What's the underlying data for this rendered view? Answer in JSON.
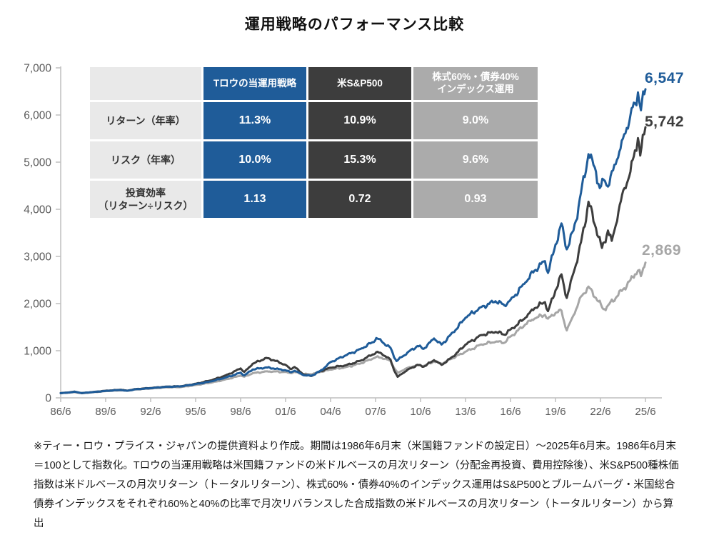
{
  "title": "運用戦略のパフォーマンス比較",
  "colors": {
    "strategy_blue": "#1F5C99",
    "sp500_dark": "#3D3D3D",
    "blend_gray": "#A6A6A6",
    "table_header_gray": "#ABABAB",
    "table_label_bg": "#E9E9E9",
    "axis_line": "#BFBFBF",
    "tick_text": "#595959"
  },
  "table": {
    "col_headers": [
      "",
      "Tロウの当運用戦略",
      "米S&P500",
      "株式60%・債券40%\nインデックス運用"
    ],
    "rows": [
      {
        "label": "リターン（年率）",
        "values": [
          "11.3%",
          "10.9%",
          "9.0%"
        ]
      },
      {
        "label": "リスク（年率）",
        "values": [
          "10.0%",
          "15.3%",
          "9.6%"
        ]
      },
      {
        "label": "投資効率\n（リターン÷リスク）",
        "values": [
          "1.13",
          "0.72",
          "0.93"
        ]
      }
    ]
  },
  "chart_data": {
    "type": "line",
    "title": "運用戦略のパフォーマンス比較",
    "xlabel": "",
    "ylabel": "",
    "xlim": [
      1986.5,
      2025.5
    ],
    "ylim": [
      0,
      7000
    ],
    "grid": false,
    "legend_position": "table-overlay",
    "x_ticks": [
      "86/6",
      "89/6",
      "92/6",
      "95/6",
      "98/6",
      "01/6",
      "04/6",
      "07/6",
      "10/6",
      "13/6",
      "16/6",
      "19/6",
      "22/6",
      "25/6"
    ],
    "y_ticks": [
      0,
      1000,
      2000,
      3000,
      4000,
      5000,
      6000,
      7000
    ],
    "index_base": 100,
    "series": [
      {
        "id": "strategy",
        "name": "Tロウの当運用戦略",
        "color": "#1F5C99",
        "end_value": 6547,
        "end_label": "6,547",
        "points": [
          [
            1986.5,
            100
          ],
          [
            1987.0,
            112
          ],
          [
            1987.42,
            130
          ],
          [
            1987.92,
            102
          ],
          [
            1988.5,
            118
          ],
          [
            1989.5,
            148
          ],
          [
            1990.5,
            167
          ],
          [
            1990.92,
            150
          ],
          [
            1991.5,
            183
          ],
          [
            1992.5,
            205
          ],
          [
            1993.5,
            235
          ],
          [
            1994.5,
            242
          ],
          [
            1995.5,
            292
          ],
          [
            1996.5,
            348
          ],
          [
            1997.5,
            432
          ],
          [
            1998.5,
            535
          ],
          [
            1998.75,
            478
          ],
          [
            1999.3,
            600
          ],
          [
            2000.2,
            645
          ],
          [
            2000.7,
            622
          ],
          [
            2001.5,
            585
          ],
          [
            2001.8,
            545
          ],
          [
            2002.1,
            575
          ],
          [
            2002.75,
            478
          ],
          [
            2003.2,
            468
          ],
          [
            2003.8,
            570
          ],
          [
            2004.5,
            760
          ],
          [
            2005.5,
            900
          ],
          [
            2006.5,
            1040
          ],
          [
            2007.3,
            1180
          ],
          [
            2007.55,
            1270
          ],
          [
            2007.9,
            1200
          ],
          [
            2008.5,
            1060
          ],
          [
            2008.9,
            780
          ],
          [
            2009.2,
            860
          ],
          [
            2009.7,
            980
          ],
          [
            2010.3,
            1100
          ],
          [
            2010.7,
            1040
          ],
          [
            2011.4,
            1260
          ],
          [
            2011.9,
            1130
          ],
          [
            2012.5,
            1340
          ],
          [
            2013.5,
            1700
          ],
          [
            2014.5,
            1920
          ],
          [
            2015.5,
            2050
          ],
          [
            2016.1,
            1960
          ],
          [
            2016.5,
            2080
          ],
          [
            2017.5,
            2450
          ],
          [
            2018.1,
            2700
          ],
          [
            2018.8,
            2900
          ],
          [
            2019.0,
            2650
          ],
          [
            2019.5,
            3250
          ],
          [
            2019.9,
            3700
          ],
          [
            2020.25,
            3150
          ],
          [
            2020.7,
            3550
          ],
          [
            2021.2,
            4350
          ],
          [
            2021.7,
            5170
          ],
          [
            2022.2,
            4800
          ],
          [
            2022.45,
            4450
          ],
          [
            2022.8,
            4600
          ],
          [
            2023.0,
            4480
          ],
          [
            2023.6,
            5050
          ],
          [
            2024.0,
            5500
          ],
          [
            2024.5,
            6000
          ],
          [
            2024.8,
            6250
          ],
          [
            2025.0,
            6480
          ],
          [
            2025.2,
            6100
          ],
          [
            2025.5,
            6547
          ]
        ]
      },
      {
        "id": "sp500",
        "name": "米S&P500",
        "color": "#3D3D3D",
        "end_value": 5742,
        "end_label": "5,742",
        "points": [
          [
            1986.5,
            100
          ],
          [
            1987.0,
            113
          ],
          [
            1987.42,
            133
          ],
          [
            1987.92,
            99
          ],
          [
            1988.5,
            119
          ],
          [
            1989.5,
            152
          ],
          [
            1990.5,
            172
          ],
          [
            1990.92,
            153
          ],
          [
            1991.5,
            187
          ],
          [
            1992.5,
            209
          ],
          [
            1993.5,
            238
          ],
          [
            1994.5,
            245
          ],
          [
            1995.5,
            300
          ],
          [
            1996.5,
            370
          ],
          [
            1997.5,
            478
          ],
          [
            1998.5,
            625
          ],
          [
            1998.75,
            550
          ],
          [
            1999.3,
            722
          ],
          [
            2000.2,
            848
          ],
          [
            2000.7,
            800
          ],
          [
            2001.5,
            700
          ],
          [
            2001.8,
            615
          ],
          [
            2002.1,
            655
          ],
          [
            2002.75,
            490
          ],
          [
            2003.2,
            462
          ],
          [
            2003.8,
            565
          ],
          [
            2004.5,
            640
          ],
          [
            2005.5,
            690
          ],
          [
            2006.5,
            790
          ],
          [
            2007.3,
            920
          ],
          [
            2007.55,
            970
          ],
          [
            2007.9,
            940
          ],
          [
            2008.5,
            810
          ],
          [
            2008.97,
            445
          ],
          [
            2009.3,
            520
          ],
          [
            2009.7,
            610
          ],
          [
            2010.3,
            700
          ],
          [
            2010.7,
            660
          ],
          [
            2011.4,
            800
          ],
          [
            2011.9,
            700
          ],
          [
            2012.5,
            840
          ],
          [
            2013.5,
            1130
          ],
          [
            2014.5,
            1330
          ],
          [
            2015.5,
            1400
          ],
          [
            2016.1,
            1340
          ],
          [
            2016.5,
            1450
          ],
          [
            2017.5,
            1700
          ],
          [
            2018.1,
            1900
          ],
          [
            2018.8,
            2030
          ],
          [
            2019.0,
            1840
          ],
          [
            2019.5,
            2280
          ],
          [
            2019.9,
            2620
          ],
          [
            2020.25,
            2120
          ],
          [
            2020.7,
            2650
          ],
          [
            2021.2,
            3300
          ],
          [
            2021.7,
            4160
          ],
          [
            2022.2,
            3600
          ],
          [
            2022.6,
            3180
          ],
          [
            2023.0,
            3550
          ],
          [
            2023.25,
            3330
          ],
          [
            2023.7,
            3950
          ],
          [
            2024.1,
            4450
          ],
          [
            2024.5,
            4800
          ],
          [
            2024.8,
            5250
          ],
          [
            2025.0,
            5510
          ],
          [
            2025.15,
            5140
          ],
          [
            2025.5,
            5742
          ]
        ]
      },
      {
        "id": "blend",
        "name": "株式60%・債券40%インデックス運用",
        "color": "#A6A6A6",
        "end_value": 2869,
        "end_label": "2,869",
        "points": [
          [
            1986.5,
            100
          ],
          [
            1987.0,
            109
          ],
          [
            1987.42,
            121
          ],
          [
            1987.92,
            104
          ],
          [
            1988.5,
            115
          ],
          [
            1989.5,
            143
          ],
          [
            1990.5,
            159
          ],
          [
            1990.92,
            151
          ],
          [
            1991.5,
            177
          ],
          [
            1992.5,
            197
          ],
          [
            1993.5,
            223
          ],
          [
            1994.5,
            228
          ],
          [
            1995.5,
            273
          ],
          [
            1996.5,
            320
          ],
          [
            1997.5,
            392
          ],
          [
            1998.5,
            472
          ],
          [
            1998.75,
            448
          ],
          [
            1999.3,
            522
          ],
          [
            2000.2,
            562
          ],
          [
            2000.7,
            560
          ],
          [
            2001.5,
            548
          ],
          [
            2001.8,
            528
          ],
          [
            2002.1,
            548
          ],
          [
            2002.75,
            505
          ],
          [
            2003.2,
            500
          ],
          [
            2003.8,
            548
          ],
          [
            2004.5,
            600
          ],
          [
            2005.5,
            650
          ],
          [
            2006.5,
            730
          ],
          [
            2007.3,
            830
          ],
          [
            2007.55,
            870
          ],
          [
            2007.9,
            850
          ],
          [
            2008.5,
            780
          ],
          [
            2008.97,
            530
          ],
          [
            2009.3,
            580
          ],
          [
            2009.7,
            645
          ],
          [
            2010.3,
            700
          ],
          [
            2010.7,
            675
          ],
          [
            2011.4,
            770
          ],
          [
            2011.9,
            725
          ],
          [
            2012.5,
            820
          ],
          [
            2013.5,
            980
          ],
          [
            2014.5,
            1130
          ],
          [
            2015.5,
            1190
          ],
          [
            2016.1,
            1170
          ],
          [
            2016.5,
            1300
          ],
          [
            2017.5,
            1560
          ],
          [
            2018.1,
            1680
          ],
          [
            2018.8,
            1760
          ],
          [
            2019.0,
            1680
          ],
          [
            2019.5,
            1800
          ],
          [
            2019.9,
            1850
          ],
          [
            2020.25,
            1430
          ],
          [
            2020.7,
            1750
          ],
          [
            2021.2,
            2150
          ],
          [
            2021.7,
            2360
          ],
          [
            2022.2,
            2120
          ],
          [
            2022.7,
            1880
          ],
          [
            2023.0,
            1960
          ],
          [
            2023.6,
            2150
          ],
          [
            2024.0,
            2300
          ],
          [
            2024.5,
            2500
          ],
          [
            2024.8,
            2620
          ],
          [
            2025.0,
            2700
          ],
          [
            2025.2,
            2580
          ],
          [
            2025.5,
            2869
          ]
        ]
      }
    ]
  },
  "footnote": "※ティー・ロウ・プライス・ジャパンの提供資料より作成。期間は1986年6月末（米国籍ファンドの設定日）～2025年6月末。1986年6月末＝100として指数化。Tロウの当運用戦略は米国籍ファンドの米ドルベースの月次リターン（分配金再投資、費用控除後）、米S&P500種株価指数は米ドルベースの月次リターン（トータルリターン）、株式60%・債券40%のインデックス運用はS&P500とブルームバーグ・米国総合債券インデックスをそれぞれ60%と40%の比率で月次リバランスした合成指数の米ドルベースの月次リターン（トータルリターン）から算出"
}
